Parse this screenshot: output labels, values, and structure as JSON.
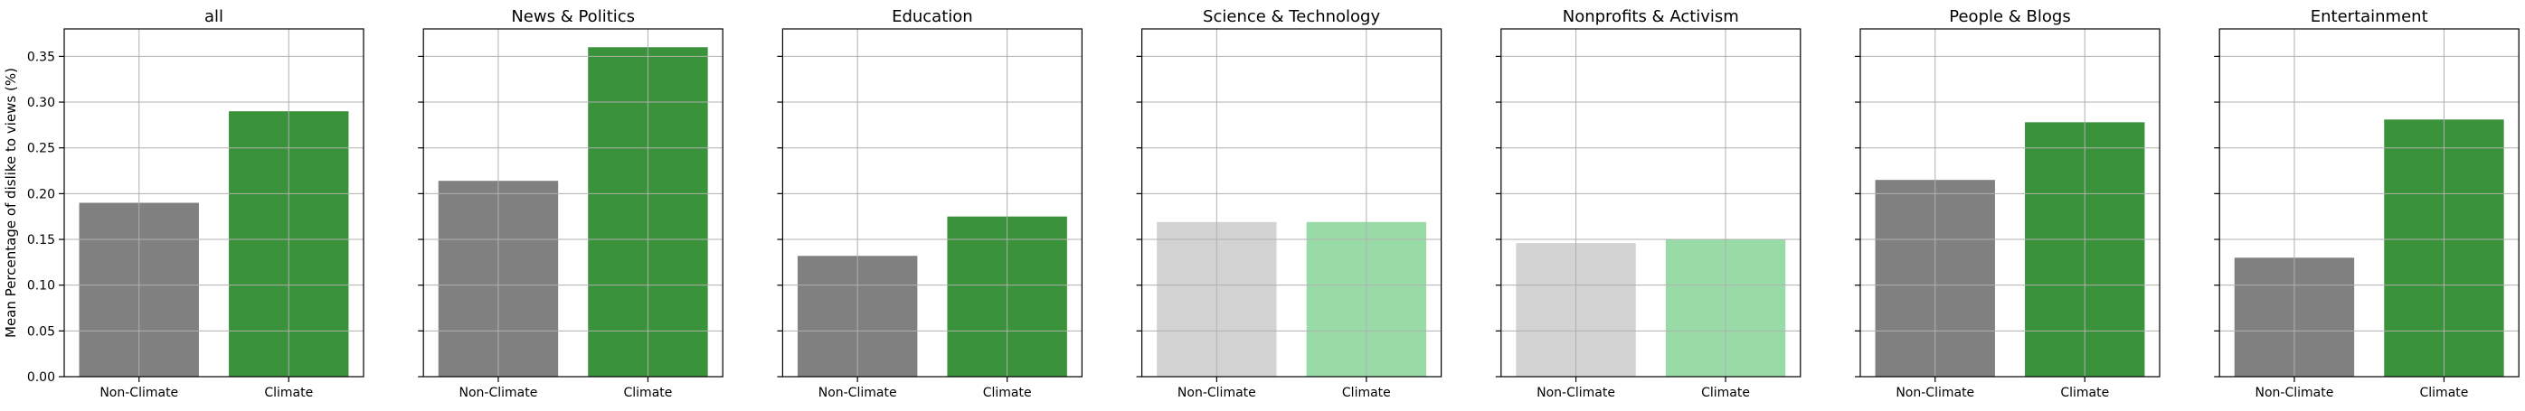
{
  "ylabel": "Mean Percentage of dislike to views (%)",
  "ylim": [
    0,
    0.38
  ],
  "yticks": [
    "0.00",
    "0.05",
    "0.10",
    "0.15",
    "0.20",
    "0.25",
    "0.30",
    "0.35"
  ],
  "colors": {
    "non_climate": "#808080",
    "climate": "#3a923a",
    "non_climate_light": "#d3d3d3",
    "climate_light": "#98dba6",
    "grid": "#b0b0b0"
  },
  "chart_data": [
    {
      "type": "bar",
      "title": "all",
      "categories": [
        "Non-Climate",
        "Climate"
      ],
      "values": [
        0.19,
        0.29
      ],
      "muted": false,
      "grid": true
    },
    {
      "type": "bar",
      "title": "News & Politics",
      "categories": [
        "Non-Climate",
        "Climate"
      ],
      "values": [
        0.214,
        0.36
      ],
      "muted": false,
      "grid": true
    },
    {
      "type": "bar",
      "title": "Education",
      "categories": [
        "Non-Climate",
        "Climate"
      ],
      "values": [
        0.132,
        0.175
      ],
      "muted": false,
      "grid": true
    },
    {
      "type": "bar",
      "title": "Science & Technology",
      "categories": [
        "Non-Climate",
        "Climate"
      ],
      "values": [
        0.169,
        0.169
      ],
      "muted": true,
      "grid": true
    },
    {
      "type": "bar",
      "title": "Nonprofits & Activism",
      "categories": [
        "Non-Climate",
        "Climate"
      ],
      "values": [
        0.146,
        0.15
      ],
      "muted": true,
      "grid": true
    },
    {
      "type": "bar",
      "title": "People & Blogs",
      "categories": [
        "Non-Climate",
        "Climate"
      ],
      "values": [
        0.215,
        0.278
      ],
      "muted": false,
      "grid": true
    },
    {
      "type": "bar",
      "title": "Entertainment",
      "categories": [
        "Non-Climate",
        "Climate"
      ],
      "values": [
        0.13,
        0.281
      ],
      "muted": false,
      "grid": true
    }
  ]
}
